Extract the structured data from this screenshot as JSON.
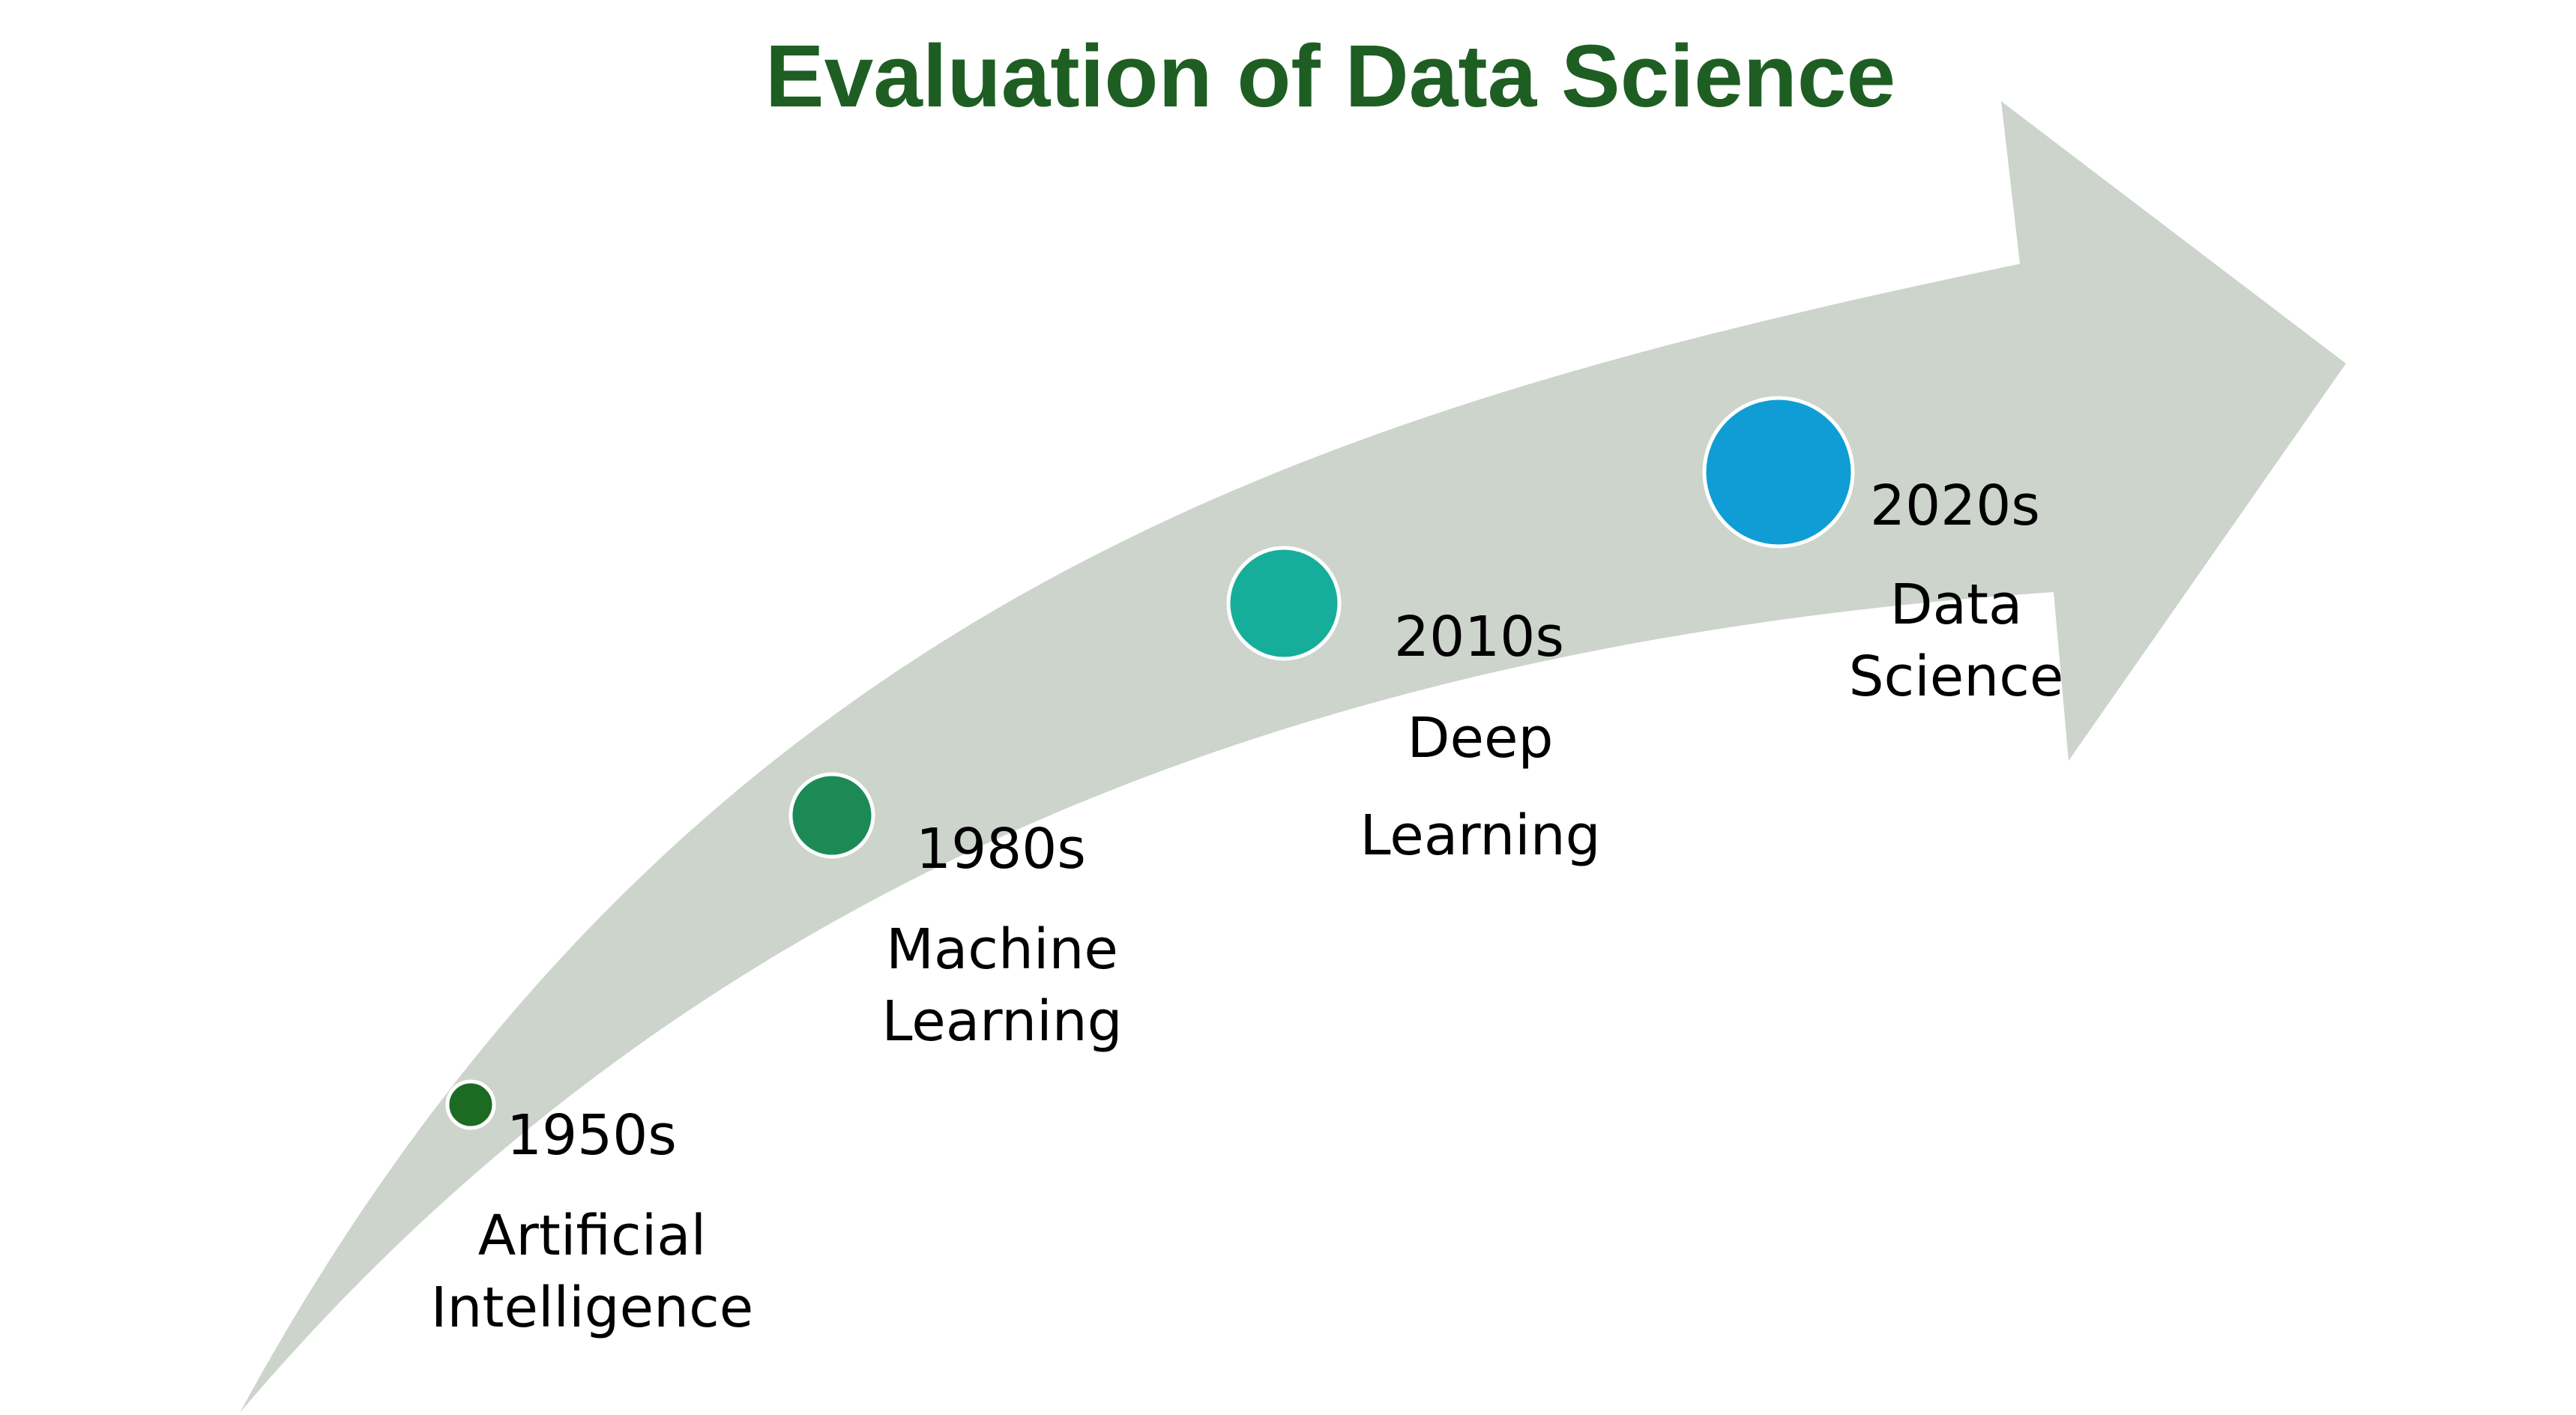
{
  "title": "Evaluation of Data Science",
  "colors": {
    "title": "#1e5e23",
    "arrow": "#ccd4cc",
    "milestone_border": "#ffffff"
  },
  "milestones": [
    {
      "year": "1950s",
      "label_lines": [
        "Artificial",
        "Intelligence"
      ],
      "color": "#1b6b22"
    },
    {
      "year": "1980s",
      "label_lines": [
        "Machine",
        "Learning"
      ],
      "color": "#1c8a55"
    },
    {
      "year": "2010s",
      "label_lines": [
        "Deep",
        "Learning"
      ],
      "color": "#17ad9b"
    },
    {
      "year": "2020s",
      "label_lines": [
        "Data",
        "Science"
      ],
      "color": "#109dd6"
    }
  ]
}
